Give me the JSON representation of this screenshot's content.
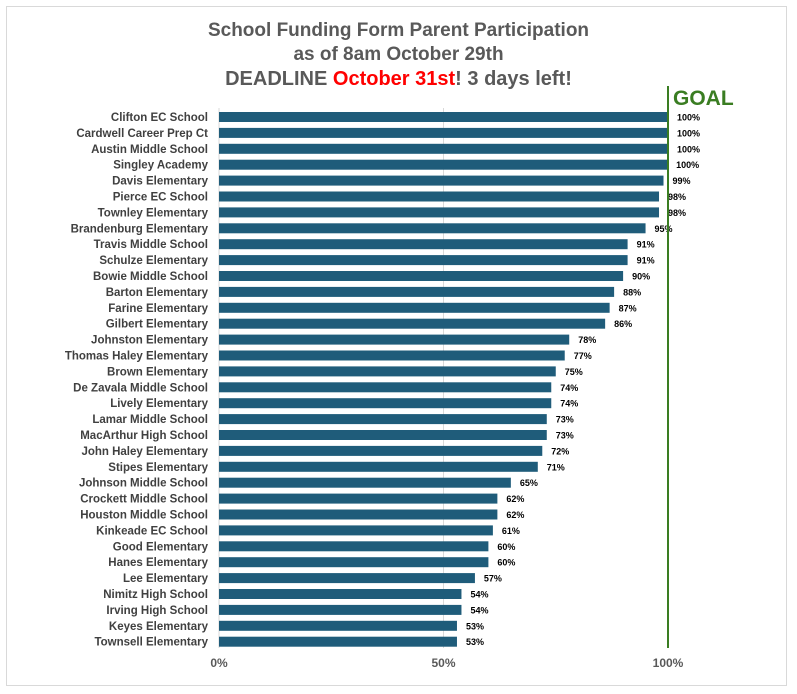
{
  "header": {
    "line1": "School Funding Form Parent Participation",
    "line2": "as of 8am October 29th",
    "line3_prefix": "DEADLINE ",
    "line3_highlight": "October 31st",
    "line3_suffix": "! 3 days left!",
    "highlight_color": "#ff0000"
  },
  "chart_data": {
    "type": "bar",
    "orientation": "horizontal",
    "categories": [
      "Clifton EC School",
      "Cardwell Career Prep Ct",
      "Austin Middle School",
      "Singley Academy",
      "Davis Elementary",
      "Pierce EC School",
      "Townley Elementary",
      "Brandenburg Elementary",
      "Travis Middle School",
      "Schulze Elementary",
      "Bowie Middle School",
      "Barton Elementary",
      "Farine Elementary",
      "Gilbert Elementary",
      "Johnston Elementary",
      "Thomas Haley Elementary",
      "Brown Elementary",
      "De Zavala Middle School",
      "Lively Elementary",
      "Lamar Middle School",
      "MacArthur High School",
      "John Haley Elementary",
      "Stipes Elementary",
      "Johnson Middle School",
      "Crockett Middle School",
      "Houston Middle School",
      "Kinkeade EC School",
      "Good Elementary",
      "Hanes Elementary",
      "Lee Elementary",
      "Nimitz High School",
      "Irving High School",
      "Keyes Elementary",
      "Townsell Elementary"
    ],
    "values": [
      100,
      100,
      100,
      99.8,
      99,
      98,
      98,
      95,
      91,
      91,
      90,
      88,
      87,
      86,
      78,
      77,
      75,
      74,
      74,
      73,
      73,
      72,
      71,
      65,
      62,
      62,
      61,
      60,
      60,
      57,
      54,
      54,
      53,
      53
    ],
    "value_labels": [
      "100%",
      "100%",
      "100%",
      "100%",
      "99%",
      "98%",
      "98%",
      "95%",
      "91%",
      "91%",
      "90%",
      "88%",
      "87%",
      "86%",
      "78%",
      "77%",
      "75%",
      "74%",
      "74%",
      "73%",
      "73%",
      "72%",
      "71%",
      "65%",
      "62%",
      "62%",
      "61%",
      "60%",
      "60%",
      "57%",
      "54%",
      "54%",
      "53%",
      "53%"
    ],
    "xlim": [
      0,
      100
    ],
    "x_ticks": [
      0,
      50,
      100
    ],
    "x_tick_labels": [
      "0%",
      "50%",
      "100%"
    ],
    "grid": true,
    "goal_value": 100,
    "goal_label": "GOAL",
    "bar_color": "#1f5c7a",
    "goal_color": "#3a7d22",
    "grid_color": "#d9d9d9"
  }
}
